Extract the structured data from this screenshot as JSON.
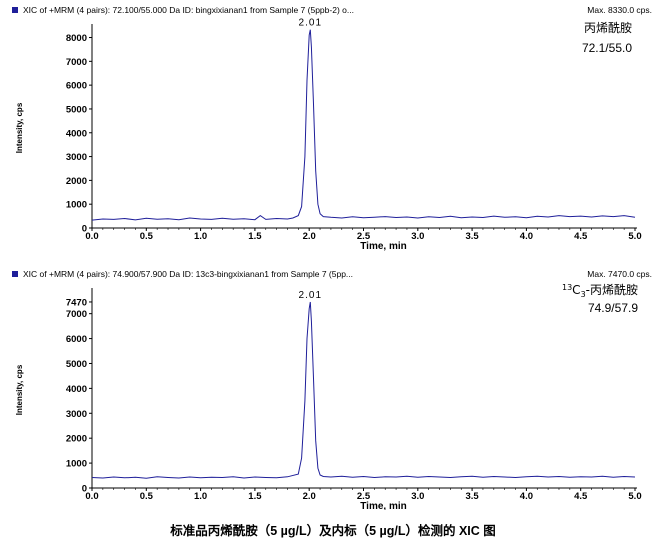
{
  "caption": "标准品丙烯酰胺（5 µg/L）及内标（5 µg/L）检测的 XIC 图",
  "chart_data": [
    {
      "type": "line",
      "header_left": "XIC of +MRM (4 pairs): 72.100/55.000 Da ID: bingxixianan1 from Sample 7 (5ppb-2) o...",
      "header_right": "Max. 8330.0 cps.",
      "xlabel": "Time, min",
      "ylabel": "Intensity, cps",
      "xlim": [
        0,
        5
      ],
      "ylim": [
        0,
        8400
      ],
      "x_ticks": [
        "0.0",
        "0.5",
        "1.0",
        "1.5",
        "2.0",
        "2.5",
        "3.0",
        "3.5",
        "4.0",
        "4.5",
        "5.0"
      ],
      "y_ticks": [
        "0",
        "1000",
        "2000",
        "3000",
        "4000",
        "5000",
        "6000",
        "7000",
        "8000"
      ],
      "peak_label": "2.01",
      "annotation_lines": [
        "丙烯酰胺",
        "72.1/55.0"
      ],
      "line_color": "#1f1f9a",
      "series": [
        {
          "x": [
            0.0,
            0.1,
            0.2,
            0.3,
            0.4,
            0.5,
            0.6,
            0.7,
            0.8,
            0.9,
            1.0,
            1.1,
            1.2,
            1.3,
            1.4,
            1.5,
            1.55,
            1.6,
            1.7,
            1.8,
            1.85,
            1.9,
            1.93,
            1.96,
            1.98,
            2.0,
            2.01,
            2.02,
            2.04,
            2.06,
            2.08,
            2.1,
            2.13,
            2.2,
            2.3,
            2.4,
            2.5,
            2.6,
            2.7,
            2.8,
            2.9,
            3.0,
            3.1,
            3.2,
            3.3,
            3.4,
            3.5,
            3.6,
            3.7,
            3.8,
            3.9,
            4.0,
            4.1,
            4.2,
            4.3,
            4.4,
            4.5,
            4.6,
            4.7,
            4.8,
            4.9,
            5.0
          ],
          "y": [
            330,
            380,
            360,
            400,
            340,
            410,
            370,
            390,
            350,
            420,
            380,
            360,
            410,
            370,
            390,
            350,
            520,
            360,
            400,
            380,
            420,
            520,
            900,
            3000,
            6200,
            8100,
            8330,
            7600,
            5200,
            2400,
            1000,
            600,
            480,
            450,
            420,
            470,
            430,
            450,
            480,
            440,
            460,
            420,
            470,
            440,
            490,
            430,
            460,
            440,
            500,
            450,
            470,
            430,
            490,
            460,
            520,
            480,
            500,
            460,
            510,
            480,
            520,
            450
          ]
        }
      ]
    },
    {
      "type": "line",
      "header_left": "XIC of +MRM (4 pairs): 74.900/57.900 Da ID: 13c3-bingxixianan1 from Sample 7 (5pp...",
      "header_right": "Max. 7470.0 cps.",
      "xlabel": "Time, min",
      "ylabel": "Intensity, cps",
      "xlim": [
        0,
        5
      ],
      "ylim": [
        0,
        7870
      ],
      "x_ticks": [
        "0.0",
        "0.5",
        "1.0",
        "1.5",
        "2.0",
        "2.5",
        "3.0",
        "3.5",
        "4.0",
        "4.5",
        "5.0"
      ],
      "y_ticks": [
        "0",
        "1000",
        "2000",
        "3000",
        "4000",
        "5000",
        "6000",
        "7000",
        "7470"
      ],
      "peak_label": "2.01",
      "annotation_lines": [
        "13",
        "C",
        "3",
        "-丙烯酰胺",
        "74.9/57.9"
      ],
      "line_color": "#1f1f9a",
      "series": [
        {
          "x": [
            0.0,
            0.1,
            0.2,
            0.3,
            0.4,
            0.5,
            0.6,
            0.7,
            0.8,
            0.9,
            1.0,
            1.1,
            1.2,
            1.3,
            1.4,
            1.5,
            1.6,
            1.7,
            1.8,
            1.9,
            1.93,
            1.96,
            1.98,
            2.0,
            2.01,
            2.02,
            2.04,
            2.06,
            2.08,
            2.1,
            2.13,
            2.2,
            2.3,
            2.4,
            2.5,
            2.6,
            2.7,
            2.8,
            2.9,
            3.0,
            3.1,
            3.2,
            3.3,
            3.4,
            3.5,
            3.6,
            3.7,
            3.8,
            3.9,
            4.0,
            4.1,
            4.2,
            4.3,
            4.4,
            4.5,
            4.6,
            4.7,
            4.8,
            4.9,
            5.0
          ],
          "y": [
            420,
            400,
            440,
            410,
            430,
            390,
            450,
            420,
            400,
            440,
            410,
            430,
            420,
            450,
            400,
            440,
            420,
            410,
            450,
            560,
            1200,
            3500,
            6000,
            7200,
            7470,
            6700,
            4400,
            1900,
            800,
            520,
            460,
            440,
            470,
            430,
            460,
            420,
            450,
            440,
            470,
            430,
            460,
            440,
            420,
            450,
            470,
            430,
            460,
            440,
            420,
            450,
            470,
            440,
            460,
            430,
            450,
            440,
            470,
            430,
            460,
            440
          ]
        }
      ]
    }
  ]
}
